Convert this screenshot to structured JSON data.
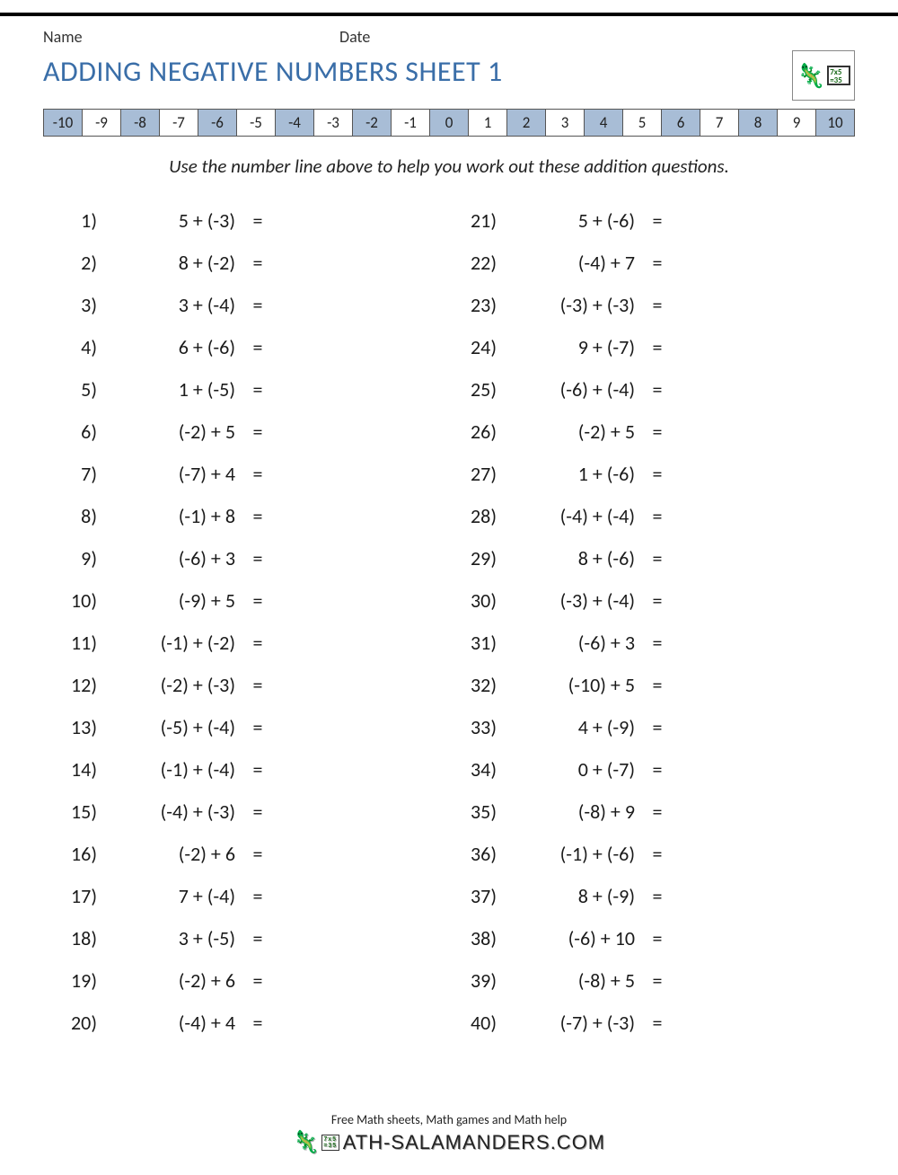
{
  "header": {
    "name_label": "Name",
    "date_label": "Date"
  },
  "title": "ADDING NEGATIVE NUMBERS SHEET 1",
  "number_line": {
    "values": [
      "-10",
      "-9",
      "-8",
      "-7",
      "-6",
      "-5",
      "-4",
      "-3",
      "-2",
      "-1",
      "0",
      "1",
      "2",
      "3",
      "4",
      "5",
      "6",
      "7",
      "8",
      "9",
      "10"
    ],
    "even_color": "#a8bdd6",
    "odd_color": "#ffffff",
    "border_color": "#555555",
    "font_size": 17
  },
  "instruction": "Use the number line above to help you work out these addition questions.",
  "equals_symbol": "=",
  "questions_left": [
    {
      "n": "1)",
      "expr": "5 + (-3)"
    },
    {
      "n": "2)",
      "expr": "8 + (-2)"
    },
    {
      "n": "3)",
      "expr": "3 + (-4)"
    },
    {
      "n": "4)",
      "expr": "6 + (-6)"
    },
    {
      "n": "5)",
      "expr": "1 + (-5)"
    },
    {
      "n": "6)",
      "expr": "(-2) + 5"
    },
    {
      "n": "7)",
      "expr": "(-7) + 4"
    },
    {
      "n": "8)",
      "expr": "(-1) + 8"
    },
    {
      "n": "9)",
      "expr": "(-6) + 3"
    },
    {
      "n": "10)",
      "expr": "(-9) + 5"
    },
    {
      "n": "11)",
      "expr": "(-1) + (-2)"
    },
    {
      "n": "12)",
      "expr": "(-2) + (-3)"
    },
    {
      "n": "13)",
      "expr": "(-5) + (-4)"
    },
    {
      "n": "14)",
      "expr": "(-1) + (-4)"
    },
    {
      "n": "15)",
      "expr": "(-4) + (-3)"
    },
    {
      "n": "16)",
      "expr": "(-2) + 6"
    },
    {
      "n": "17)",
      "expr": "7 + (-4)"
    },
    {
      "n": "18)",
      "expr": "3 + (-5)"
    },
    {
      "n": "19)",
      "expr": "(-2) + 6"
    },
    {
      "n": "20)",
      "expr": "(-4) + 4"
    }
  ],
  "questions_right": [
    {
      "n": "21)",
      "expr": "5 + (-6)"
    },
    {
      "n": "22)",
      "expr": "(-4) + 7"
    },
    {
      "n": "23)",
      "expr": "(-3) + (-3)"
    },
    {
      "n": "24)",
      "expr": "9 + (-7)"
    },
    {
      "n": "25)",
      "expr": "(-6) + (-4)"
    },
    {
      "n": "26)",
      "expr": "(-2) + 5"
    },
    {
      "n": "27)",
      "expr": "1 + (-6)"
    },
    {
      "n": "28)",
      "expr": "(-4) + (-4)"
    },
    {
      "n": "29)",
      "expr": "8 + (-6)"
    },
    {
      "n": "30)",
      "expr": "(-3) + (-4)"
    },
    {
      "n": "31)",
      "expr": "(-6) + 3"
    },
    {
      "n": "32)",
      "expr": "(-10) + 5"
    },
    {
      "n": "33)",
      "expr": "4 + (-9)"
    },
    {
      "n": "34)",
      "expr": "0 + (-7)"
    },
    {
      "n": "35)",
      "expr": "(-8) + 9"
    },
    {
      "n": "36)",
      "expr": "(-1) + (-6)"
    },
    {
      "n": "37)",
      "expr": "8 + (-9)"
    },
    {
      "n": "38)",
      "expr": "(-6) + 10"
    },
    {
      "n": "39)",
      "expr": "(-8) + 5"
    },
    {
      "n": "40)",
      "expr": "(-7) + (-3)"
    }
  ],
  "footer": {
    "tagline": "Free Math sheets, Math games and Math help",
    "brand": "ATH-SALAMANDERS.COM"
  },
  "logo_card": "7x5\n=35",
  "colors": {
    "title": "#3a6ea8",
    "text": "#1a1a1a",
    "background": "#ffffff",
    "top_border": "#000000"
  },
  "typography": {
    "title_fontsize": 32,
    "body_fontsize": 22,
    "instruction_fontsize": 21,
    "font_family": "Calibri, Arial, sans-serif"
  }
}
